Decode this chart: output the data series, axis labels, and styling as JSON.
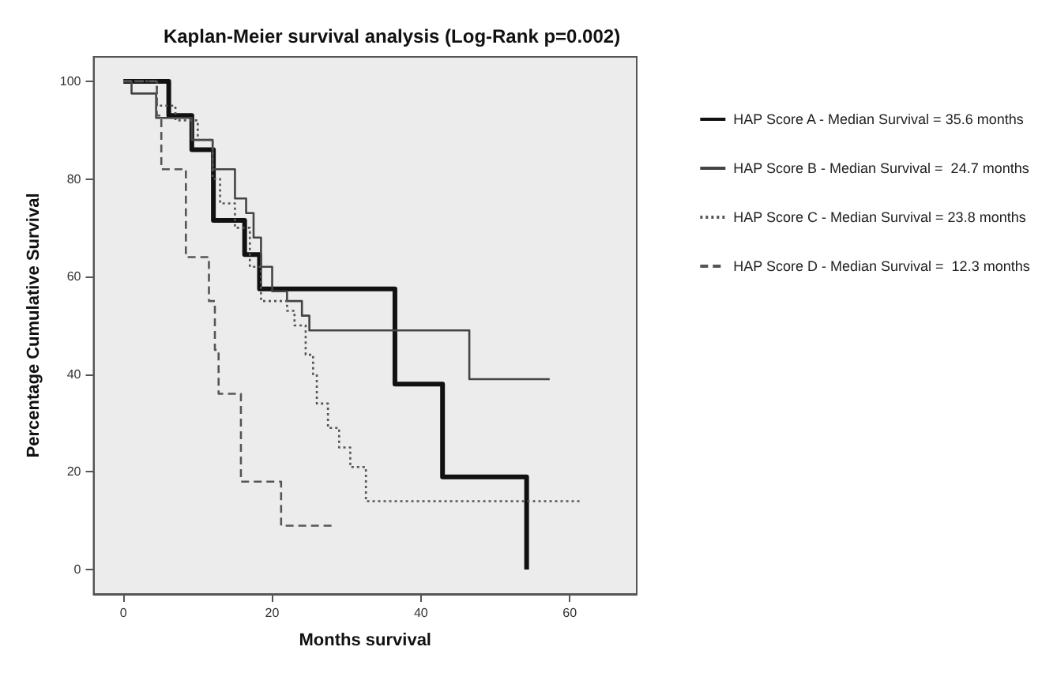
{
  "chart_data": {
    "type": "step",
    "title": "Kaplan-Meier survival analysis (Log-Rank p=0.002)",
    "xlabel": "Months survival",
    "ylabel": "Percentage Cumulative Survival",
    "xlim": [
      -4,
      69
    ],
    "xticks": [
      0,
      20,
      40,
      60
    ],
    "ylim": [
      -5,
      105
    ],
    "yticks": [
      0,
      20,
      40,
      60,
      80,
      100
    ],
    "grid": false,
    "legend": "right",
    "marker": "none",
    "series": [
      {
        "name": "HAP Score A - Median Survival = 35.6 months",
        "color": "#111111",
        "line_style": "solid",
        "x": [
          0,
          6.1,
          9.2,
          12.1,
          16.3,
          18.3,
          36.5,
          42.9,
          54.2
        ],
        "values": [
          100,
          93,
          86,
          71.5,
          64.5,
          57.5,
          38,
          19,
          0
        ]
      },
      {
        "name": "HAP Score B - Median Survival =  24.7 months",
        "color": "#444444",
        "line_style": "solid",
        "x": [
          0,
          1.1,
          4.4,
          9.2,
          12,
          15,
          16.5,
          17.5,
          18.5,
          20,
          22,
          24,
          25,
          46.5,
          57.3
        ],
        "values": [
          100,
          97.5,
          92.5,
          88,
          82,
          76,
          73,
          68,
          62,
          57,
          55,
          52,
          49,
          39,
          39
        ]
      },
      {
        "name": "HAP Score C - Median Survival = 23.8 months",
        "color": "#555555",
        "line_style": "dotted",
        "x": [
          0,
          4.5,
          7,
          10,
          12,
          13,
          15,
          17,
          18.5,
          22,
          23,
          24.5,
          25.5,
          26,
          27.5,
          29,
          30.5,
          32.6,
          61.4
        ],
        "values": [
          100,
          95,
          92,
          88,
          80,
          75,
          70,
          62,
          55,
          53,
          50,
          44,
          40,
          34,
          29,
          25,
          21,
          14,
          14
        ]
      },
      {
        "name": "HAP Score D - Median Survival =  12.3 months",
        "color": "#555555",
        "line_style": "dashed",
        "x": [
          0,
          4.5,
          5.1,
          8.4,
          11.5,
          12.3,
          12.8,
          15.8,
          21.2,
          28
        ],
        "values": [
          100,
          93,
          82,
          64,
          55,
          45,
          36,
          18,
          9,
          9
        ]
      }
    ]
  }
}
